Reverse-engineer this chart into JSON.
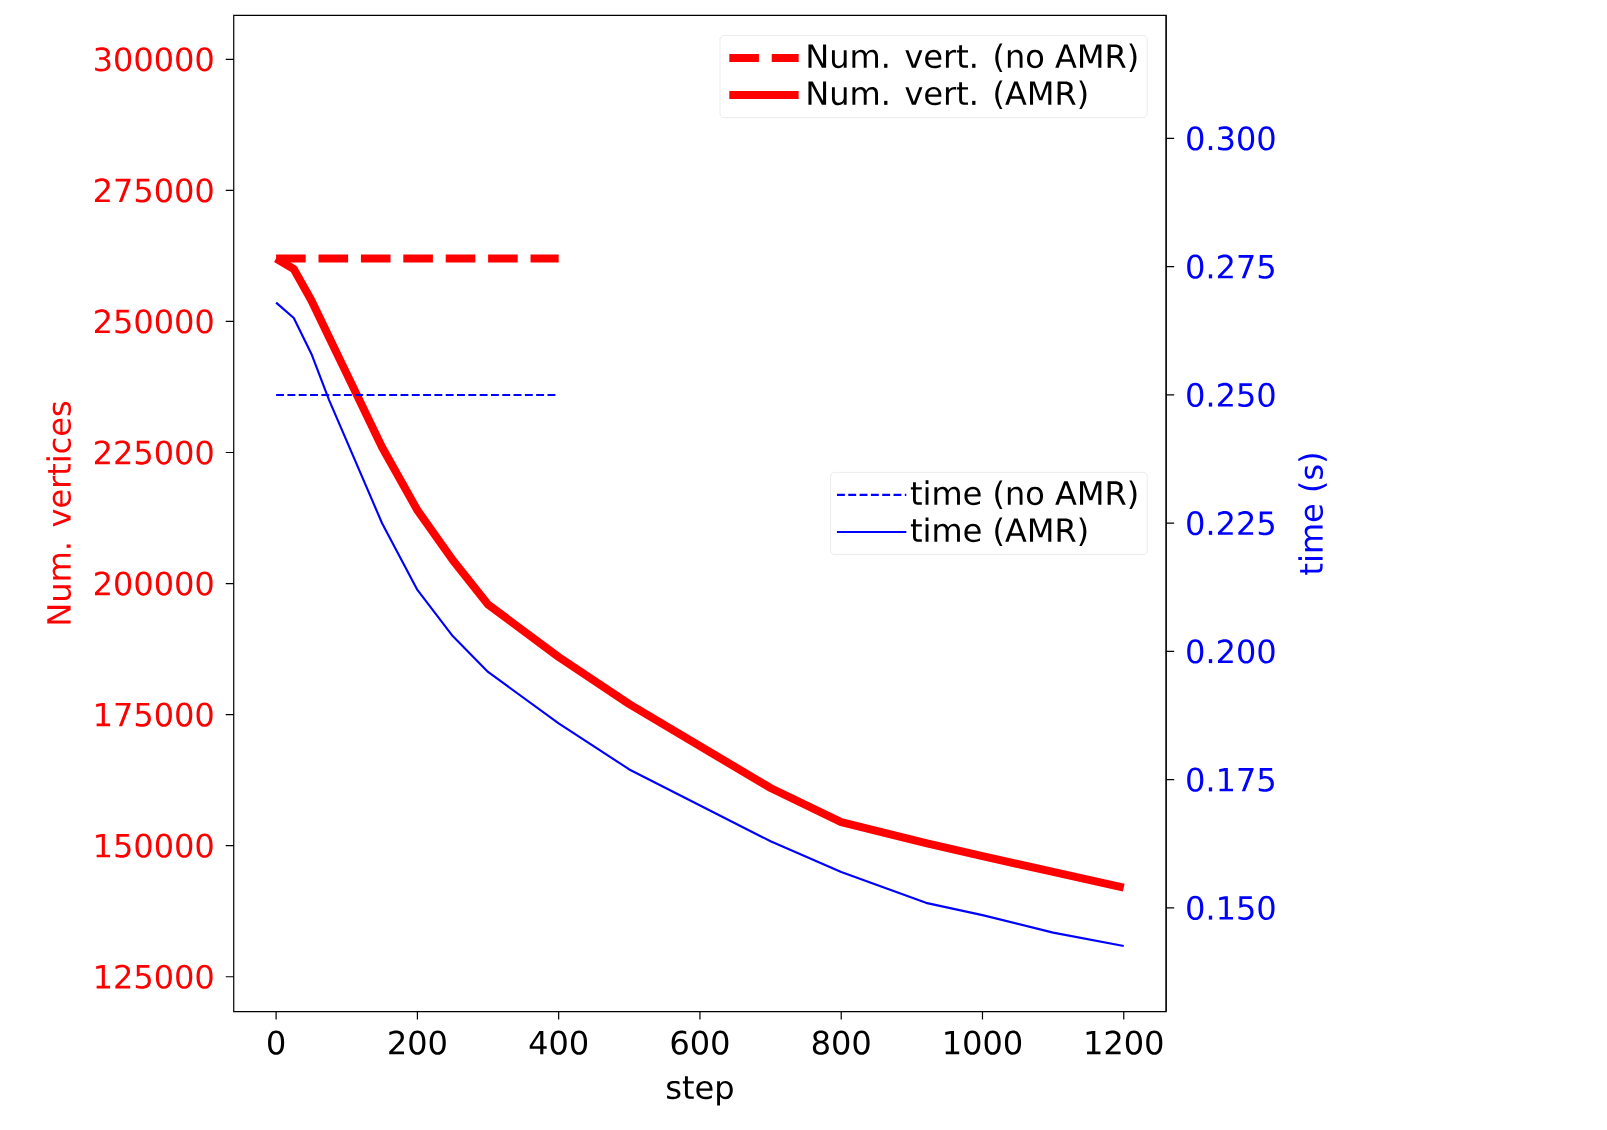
{
  "chart_data": {
    "type": "line",
    "xlabel": "step",
    "ylabel": "Num. vertices",
    "y2label": "time (s)",
    "xlim": [
      -60,
      1260
    ],
    "xticks": [
      0,
      200,
      400,
      600,
      800,
      1000,
      1200
    ],
    "ylim": [
      118350,
      308400
    ],
    "yticks": [
      125000,
      150000,
      175000,
      200000,
      225000,
      250000,
      275000,
      300000
    ],
    "y2lim": [
      0.1298,
      0.324
    ],
    "y2ticks": [
      {
        "value": 0.15,
        "label": "0.150"
      },
      {
        "value": 0.175,
        "label": "0.175"
      },
      {
        "value": 0.2,
        "label": "0.200"
      },
      {
        "value": 0.225,
        "label": "0.225"
      },
      {
        "value": 0.25,
        "label": "0.250"
      },
      {
        "value": 0.275,
        "label": "0.275"
      },
      {
        "value": 0.3,
        "label": "0.300"
      }
    ],
    "legend": "top right",
    "series": [
      {
        "name": "Num. vert. (no AMR)",
        "color": "#ff0000",
        "line_style": "dashed",
        "x": [
          0,
          400
        ],
        "values": [
          262000,
          262000
        ]
      },
      {
        "name": "Num. vert. (AMR)",
        "color": "#ff0000",
        "line_style": "solid",
        "x": [
          0,
          25,
          50,
          75,
          100,
          150,
          200,
          250,
          300,
          400,
          500,
          600,
          700,
          800,
          920,
          1000,
          1100,
          1200
        ],
        "values": [
          262000,
          260000,
          254000,
          247000,
          240000,
          226000,
          214000,
          204500,
          196000,
          186000,
          177000,
          169000,
          161000,
          154500,
          150500,
          148000,
          145000,
          142000
        ]
      },
      {
        "name": "time (no AMR)",
        "color": "#0000ff",
        "line_style": "dashed",
        "axis": "y2",
        "x": [
          0,
          400
        ],
        "values": [
          0.25,
          0.25
        ]
      },
      {
        "name": "time (AMR)",
        "color": "#0000ff",
        "line_style": "solid",
        "axis": "y2",
        "x": [
          0,
          25,
          50,
          75,
          100,
          150,
          200,
          250,
          300,
          400,
          500,
          600,
          700,
          800,
          920,
          1000,
          1100,
          1200
        ],
        "values": [
          0.268,
          0.265,
          0.258,
          0.249,
          0.241,
          0.225,
          0.212,
          0.203,
          0.196,
          0.186,
          0.177,
          0.17,
          0.163,
          0.157,
          0.151,
          0.1486,
          0.1452,
          0.1426
        ]
      }
    ]
  }
}
